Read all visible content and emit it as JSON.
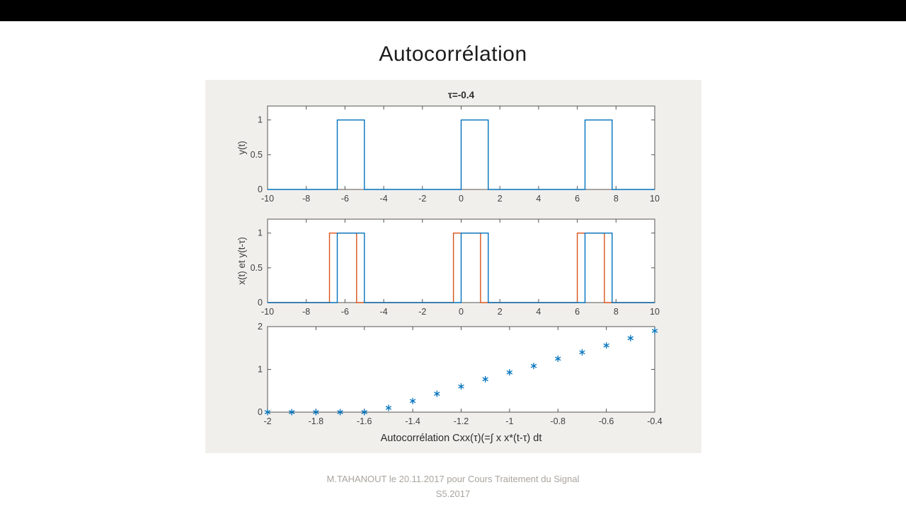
{
  "slide": {
    "title": "Autocorrélation"
  },
  "footer": {
    "line1": "M.TAHANOUT le 20.11.2017 pour Cours Traitement du Signal",
    "line2": "S5.2017"
  },
  "colors": {
    "blue": "#0072BD",
    "orange": "#D95319",
    "figure_bg": "#f1efec",
    "axis": "#555555",
    "tick_text": "#404040",
    "title_text": "#2b2b2b"
  },
  "chart_data": [
    {
      "type": "line",
      "title": "τ=-0.4",
      "ylabel": "y(t)",
      "xlim": [
        -10,
        10
      ],
      "ylim": [
        0,
        1.2
      ],
      "xticks": [
        -10,
        -8,
        -6,
        -4,
        -2,
        0,
        2,
        4,
        6,
        8,
        10
      ],
      "xtick_labels": [
        "-10",
        "-8",
        "-6",
        "-4",
        "-2",
        "0",
        "2",
        "4",
        "6",
        "8",
        "10"
      ],
      "yticks": [
        0,
        0.5,
        1
      ],
      "ytick_labels": [
        "0",
        "0.5",
        "1"
      ],
      "grid": false,
      "series": [
        {
          "name": "y(t)",
          "color": "#0072BD",
          "points": [
            [
              -10,
              0
            ],
            [
              -6.4,
              0
            ],
            [
              -6.4,
              1
            ],
            [
              -5,
              1
            ],
            [
              -5,
              0
            ],
            [
              0,
              0
            ],
            [
              0,
              1
            ],
            [
              1.4,
              1
            ],
            [
              1.4,
              0
            ],
            [
              6.4,
              0
            ],
            [
              6.4,
              1
            ],
            [
              7.8,
              1
            ],
            [
              7.8,
              0
            ],
            [
              10,
              0
            ]
          ]
        }
      ]
    },
    {
      "type": "line",
      "title": "",
      "ylabel": "x(t) et y(t-τ)",
      "xlim": [
        -10,
        10
      ],
      "ylim": [
        0,
        1.2
      ],
      "xticks": [
        -10,
        -8,
        -6,
        -4,
        -2,
        0,
        2,
        4,
        6,
        8,
        10
      ],
      "xtick_labels": [
        "-10",
        "-8",
        "-6",
        "-4",
        "-2",
        "0",
        "2",
        "4",
        "6",
        "8",
        "10"
      ],
      "yticks": [
        0,
        0.5,
        1
      ],
      "ytick_labels": [
        "0",
        "0.5",
        "1"
      ],
      "grid": false,
      "series": [
        {
          "name": "y(t-τ)",
          "color": "#D95319",
          "points": [
            [
              -10,
              0
            ],
            [
              -6.8,
              0
            ],
            [
              -6.8,
              1
            ],
            [
              -5.4,
              1
            ],
            [
              -5.4,
              0
            ],
            [
              -0.4,
              0
            ],
            [
              -0.4,
              1
            ],
            [
              1,
              1
            ],
            [
              1,
              0
            ],
            [
              6,
              0
            ],
            [
              6,
              1
            ],
            [
              7.4,
              1
            ],
            [
              7.4,
              0
            ],
            [
              10,
              0
            ]
          ]
        },
        {
          "name": "x(t)",
          "color": "#0072BD",
          "points": [
            [
              -10,
              0
            ],
            [
              -6.4,
              0
            ],
            [
              -6.4,
              1
            ],
            [
              -5,
              1
            ],
            [
              -5,
              0
            ],
            [
              0,
              0
            ],
            [
              0,
              1
            ],
            [
              1.4,
              1
            ],
            [
              1.4,
              0
            ],
            [
              6.4,
              0
            ],
            [
              6.4,
              1
            ],
            [
              7.8,
              1
            ],
            [
              7.8,
              0
            ],
            [
              10,
              0
            ]
          ]
        }
      ]
    },
    {
      "type": "scatter",
      "title": "",
      "xlabel": "Autocorrélation Cxx(τ)(=∫ x x*(t-τ) dt",
      "xlim": [
        -2,
        -0.4
      ],
      "ylim": [
        0,
        2
      ],
      "xticks": [
        -2,
        -1.8,
        -1.6,
        -1.4,
        -1.2,
        -1,
        -0.8,
        -0.6,
        -0.4
      ],
      "xtick_labels": [
        "-2",
        "-1.8",
        "-1.6",
        "-1.4",
        "-1.2",
        "-1",
        "-0.8",
        "-0.6",
        "-0.4"
      ],
      "yticks": [
        0,
        1,
        2
      ],
      "ytick_labels": [
        "0",
        "1",
        "2"
      ],
      "grid": false,
      "series": [
        {
          "name": "Cxx(τ)",
          "color": "#0072BD",
          "marker": "asterisk",
          "x": [
            -2,
            -1.9,
            -1.8,
            -1.7,
            -1.6,
            -1.5,
            -1.4,
            -1.3,
            -1.2,
            -1.1,
            -1,
            -0.9,
            -0.8,
            -0.7,
            -0.6,
            -0.5,
            -0.4
          ],
          "y": [
            0,
            0,
            0,
            0,
            0,
            0.1,
            0.26,
            0.43,
            0.6,
            0.77,
            0.93,
            1.08,
            1.25,
            1.4,
            1.56,
            1.73,
            1.9
          ]
        }
      ]
    }
  ]
}
